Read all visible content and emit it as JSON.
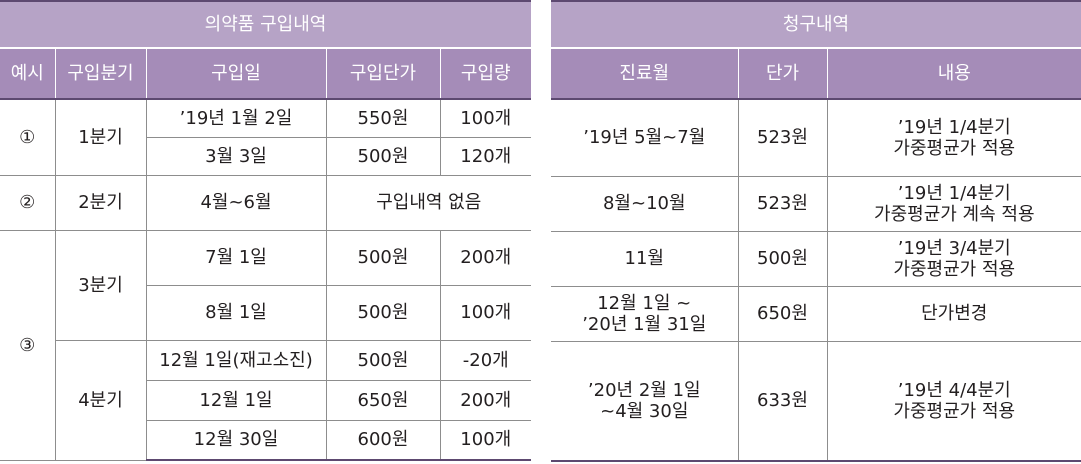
{
  "left": {
    "title": "의약품 구입내역",
    "headers": [
      "예시",
      "구입분기",
      "구입일",
      "구입단가",
      "구입량"
    ],
    "rows": [
      {
        "example": "①",
        "quarter": "1분기",
        "date": "’19년 1월 2일",
        "price": "550원",
        "qty": "100개"
      },
      {
        "date": "3월 3일",
        "price": "500원",
        "qty": "120개"
      },
      {
        "example": "②",
        "quarter": "2분기",
        "date": "4월~6월",
        "none": "구입내역 없음"
      },
      {
        "example": "③",
        "quarter": "3분기",
        "date": "7월 1일",
        "price": "500원",
        "qty": "200개"
      },
      {
        "date": "8월 1일",
        "price": "500원",
        "qty": "100개"
      },
      {
        "quarter": "4분기",
        "date": "12월 1일(재고소진)",
        "price": "500원",
        "qty": "-20개"
      },
      {
        "date": "12월 1일",
        "price": "650원",
        "qty": "200개"
      },
      {
        "date": "12월 30일",
        "price": "600원",
        "qty": "100개"
      }
    ]
  },
  "right": {
    "title": "청구내역",
    "headers": [
      "진료월",
      "단가",
      "내용"
    ],
    "rows": [
      {
        "month": "’19년 5월~7월",
        "price": "523원",
        "content": [
          "’19년 1/4분기",
          "가중평균가 적용"
        ]
      },
      {
        "month": "8월~10월",
        "price": "523원",
        "content": [
          "’19년 1/4분기",
          "가중평균가 계속 적용"
        ]
      },
      {
        "month": "11월",
        "price": "500원",
        "content": [
          "’19년 3/4분기",
          "가중평균가 적용"
        ]
      },
      {
        "month": [
          "12월 1일 ~",
          "’20년 1월 31일"
        ],
        "price": "650원",
        "content": [
          "단가변경"
        ]
      },
      {
        "month": [
          "’20년 2월 1일",
          "~4월 30일"
        ],
        "price": "633원",
        "content": [
          "’19년 4/4분기",
          "가중평균가 적용"
        ]
      }
    ]
  }
}
